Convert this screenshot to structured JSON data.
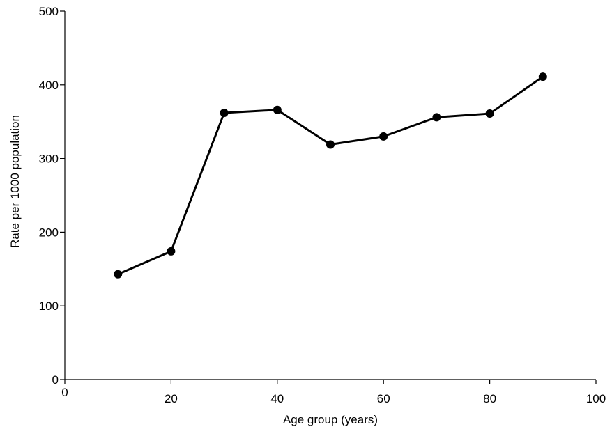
{
  "chart_data": {
    "type": "line",
    "xlabel": "Age group (years)",
    "ylabel": "Rate per 1000 population",
    "xlim": [
      0,
      100
    ],
    "ylim": [
      0,
      500
    ],
    "xticks": [
      0,
      20,
      40,
      60,
      80,
      100
    ],
    "yticks": [
      0,
      100,
      200,
      300,
      400,
      500
    ],
    "grid": false,
    "series": [
      {
        "x": [
          10,
          20,
          30,
          40,
          50,
          60,
          70,
          80,
          90
        ],
        "y": [
          143,
          174,
          362,
          366,
          319,
          330,
          356,
          361,
          411
        ],
        "color": "#000000"
      }
    ]
  }
}
